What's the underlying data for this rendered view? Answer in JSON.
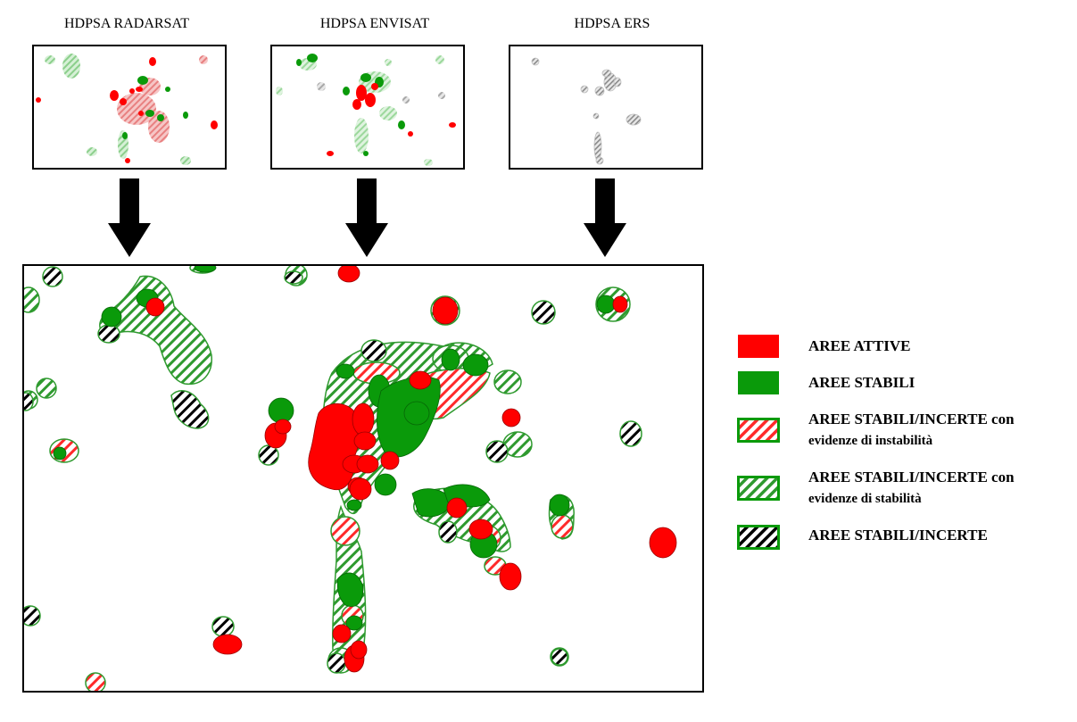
{
  "insets": [
    {
      "title": "HDPSA RADARSAT"
    },
    {
      "title": "HDPSA ENVISAT"
    },
    {
      "title": "HDPSA ERS"
    }
  ],
  "legend": {
    "items": [
      {
        "label": "AREE ATTIVE",
        "label2": "",
        "type": "solid-red",
        "color": "#ff0000"
      },
      {
        "label": "AREE STABILI",
        "label2": "",
        "type": "solid-green",
        "color": "#009900"
      },
      {
        "label": "AREE STABILI/INCERTE con",
        "label2": "evidenze di instabilità",
        "type": "hatch-red",
        "color": "#ff3333"
      },
      {
        "label": "AREE STABILI/INCERTE con",
        "label2": "evidenze di stabilità",
        "type": "hatch-green",
        "color": "#33aa33"
      },
      {
        "label": "AREE STABILI/INCERTE",
        "label2": "",
        "type": "hatch-black",
        "color": "#000000"
      }
    ]
  },
  "colors": {
    "red": "#ff0000",
    "green": "#0a9a0a",
    "outline_green": "#2f9a2f",
    "black": "#000000"
  },
  "icons": {
    "arrow": "down-arrow-icon"
  }
}
